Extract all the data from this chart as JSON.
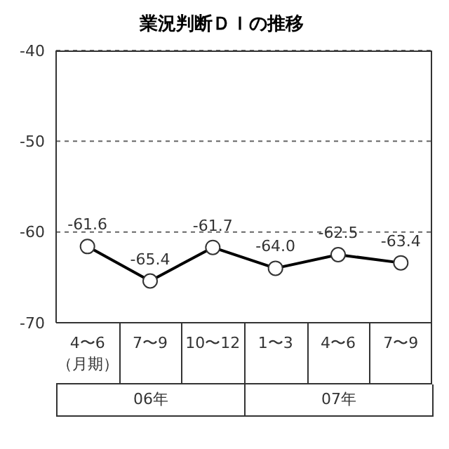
{
  "chart_data": {
    "type": "line",
    "title": "業況判断ＤＩの推移",
    "categories": [
      "4〜6\n（月期）",
      "7〜9",
      "10〜12",
      "1〜3",
      "4〜6",
      "7〜9"
    ],
    "series": [
      {
        "color": "#000000",
        "values": [
          -61.6,
          -65.4,
          -61.7,
          -64.0,
          -62.5,
          -63.4
        ],
        "value_labels": [
          "-61.6",
          "-65.4",
          "-61.7",
          "-64.0",
          "-62.5",
          "-63.4"
        ]
      }
    ],
    "ylim": [
      -70,
      -40
    ],
    "yticks": [
      -40,
      -50,
      -60,
      -70
    ],
    "grid": "y",
    "marker": "circle",
    "line_style": "solid",
    "legend": false,
    "annotations": [
      "06年",
      "07年"
    ]
  }
}
